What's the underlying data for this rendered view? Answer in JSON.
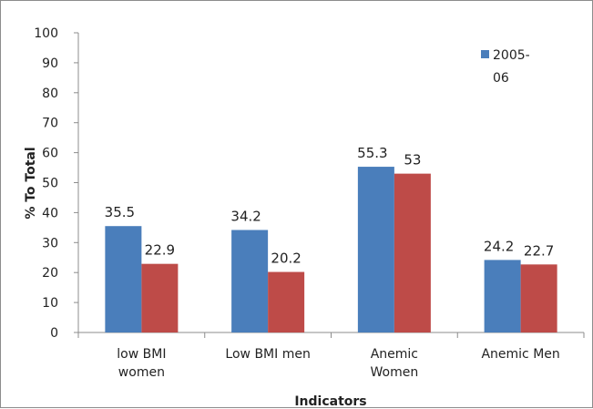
{
  "chart_data": {
    "type": "bar",
    "title": "",
    "xlabel": "Indicators",
    "ylabel": "% To Total",
    "ylim": [
      0,
      100
    ],
    "yticks": [
      0,
      10,
      20,
      30,
      40,
      50,
      60,
      70,
      80,
      90,
      100
    ],
    "categories": [
      [
        "low BMI",
        "women"
      ],
      [
        "Low BMI men"
      ],
      [
        "Anemic",
        "Women"
      ],
      [
        "Anemic Men"
      ]
    ],
    "series": [
      {
        "name": "2005-06",
        "legend_lines": [
          "2005-",
          "06"
        ],
        "color": "#4a7ebb",
        "values": [
          35.5,
          34.2,
          55.3,
          24.2
        ]
      },
      {
        "color": "#be4b48",
        "values": [
          22.9,
          20.2,
          53,
          22.7
        ]
      }
    ],
    "gridlines": false,
    "legend_position": "top-right"
  }
}
